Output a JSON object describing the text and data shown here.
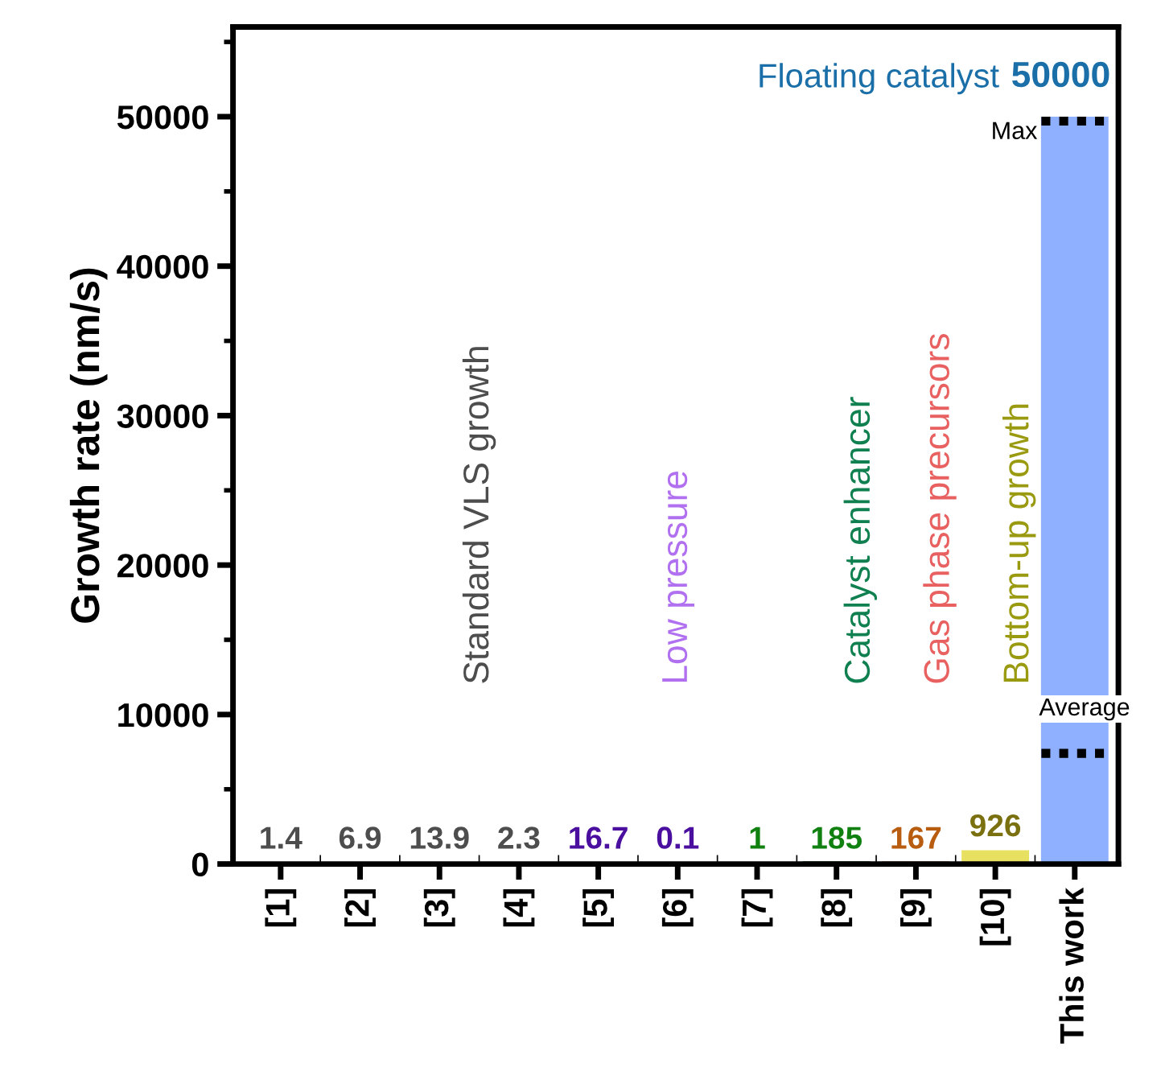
{
  "chart_data": {
    "type": "bar",
    "ylabel": "Growth rate (nm/s)",
    "categories": [
      "[1]",
      "[2]",
      "[3]",
      "[4]",
      "[5]",
      "[6]",
      "[7]",
      "[8]",
      "[9]",
      "[10]",
      "This work"
    ],
    "values": [
      1.4,
      6.9,
      13.9,
      2.3,
      16.7,
      0.1,
      1,
      185,
      167,
      926,
      50000
    ],
    "colors": [
      "#4d4d4d",
      "#4d4d4d",
      "#4d4d4d",
      "#4d4d4d",
      "#4b0fa0",
      "#4b0fa0",
      "#108010",
      "#108010",
      "#b85c10",
      "#e8e060",
      "#8fb0ff"
    ],
    "data_labels": true,
    "ylim": [
      0,
      56000
    ],
    "yticks": [
      0,
      10000,
      20000,
      30000,
      40000,
      50000
    ],
    "ref_lines": [
      {
        "axis": "y",
        "value": 49700,
        "label": "Max",
        "color": "#000000",
        "line_style": "dotted"
      },
      {
        "axis": "y",
        "value": 7400,
        "label": "Average",
        "color": "#000000",
        "line_style": "dotted"
      }
    ],
    "annotations": [
      "Standard VLS growth",
      "Low pressure",
      "Catalyst enhancer",
      "Gas phase precursors",
      "Bottom-up growth",
      "Floating catalyst"
    ],
    "grid": false,
    "legend": false
  }
}
